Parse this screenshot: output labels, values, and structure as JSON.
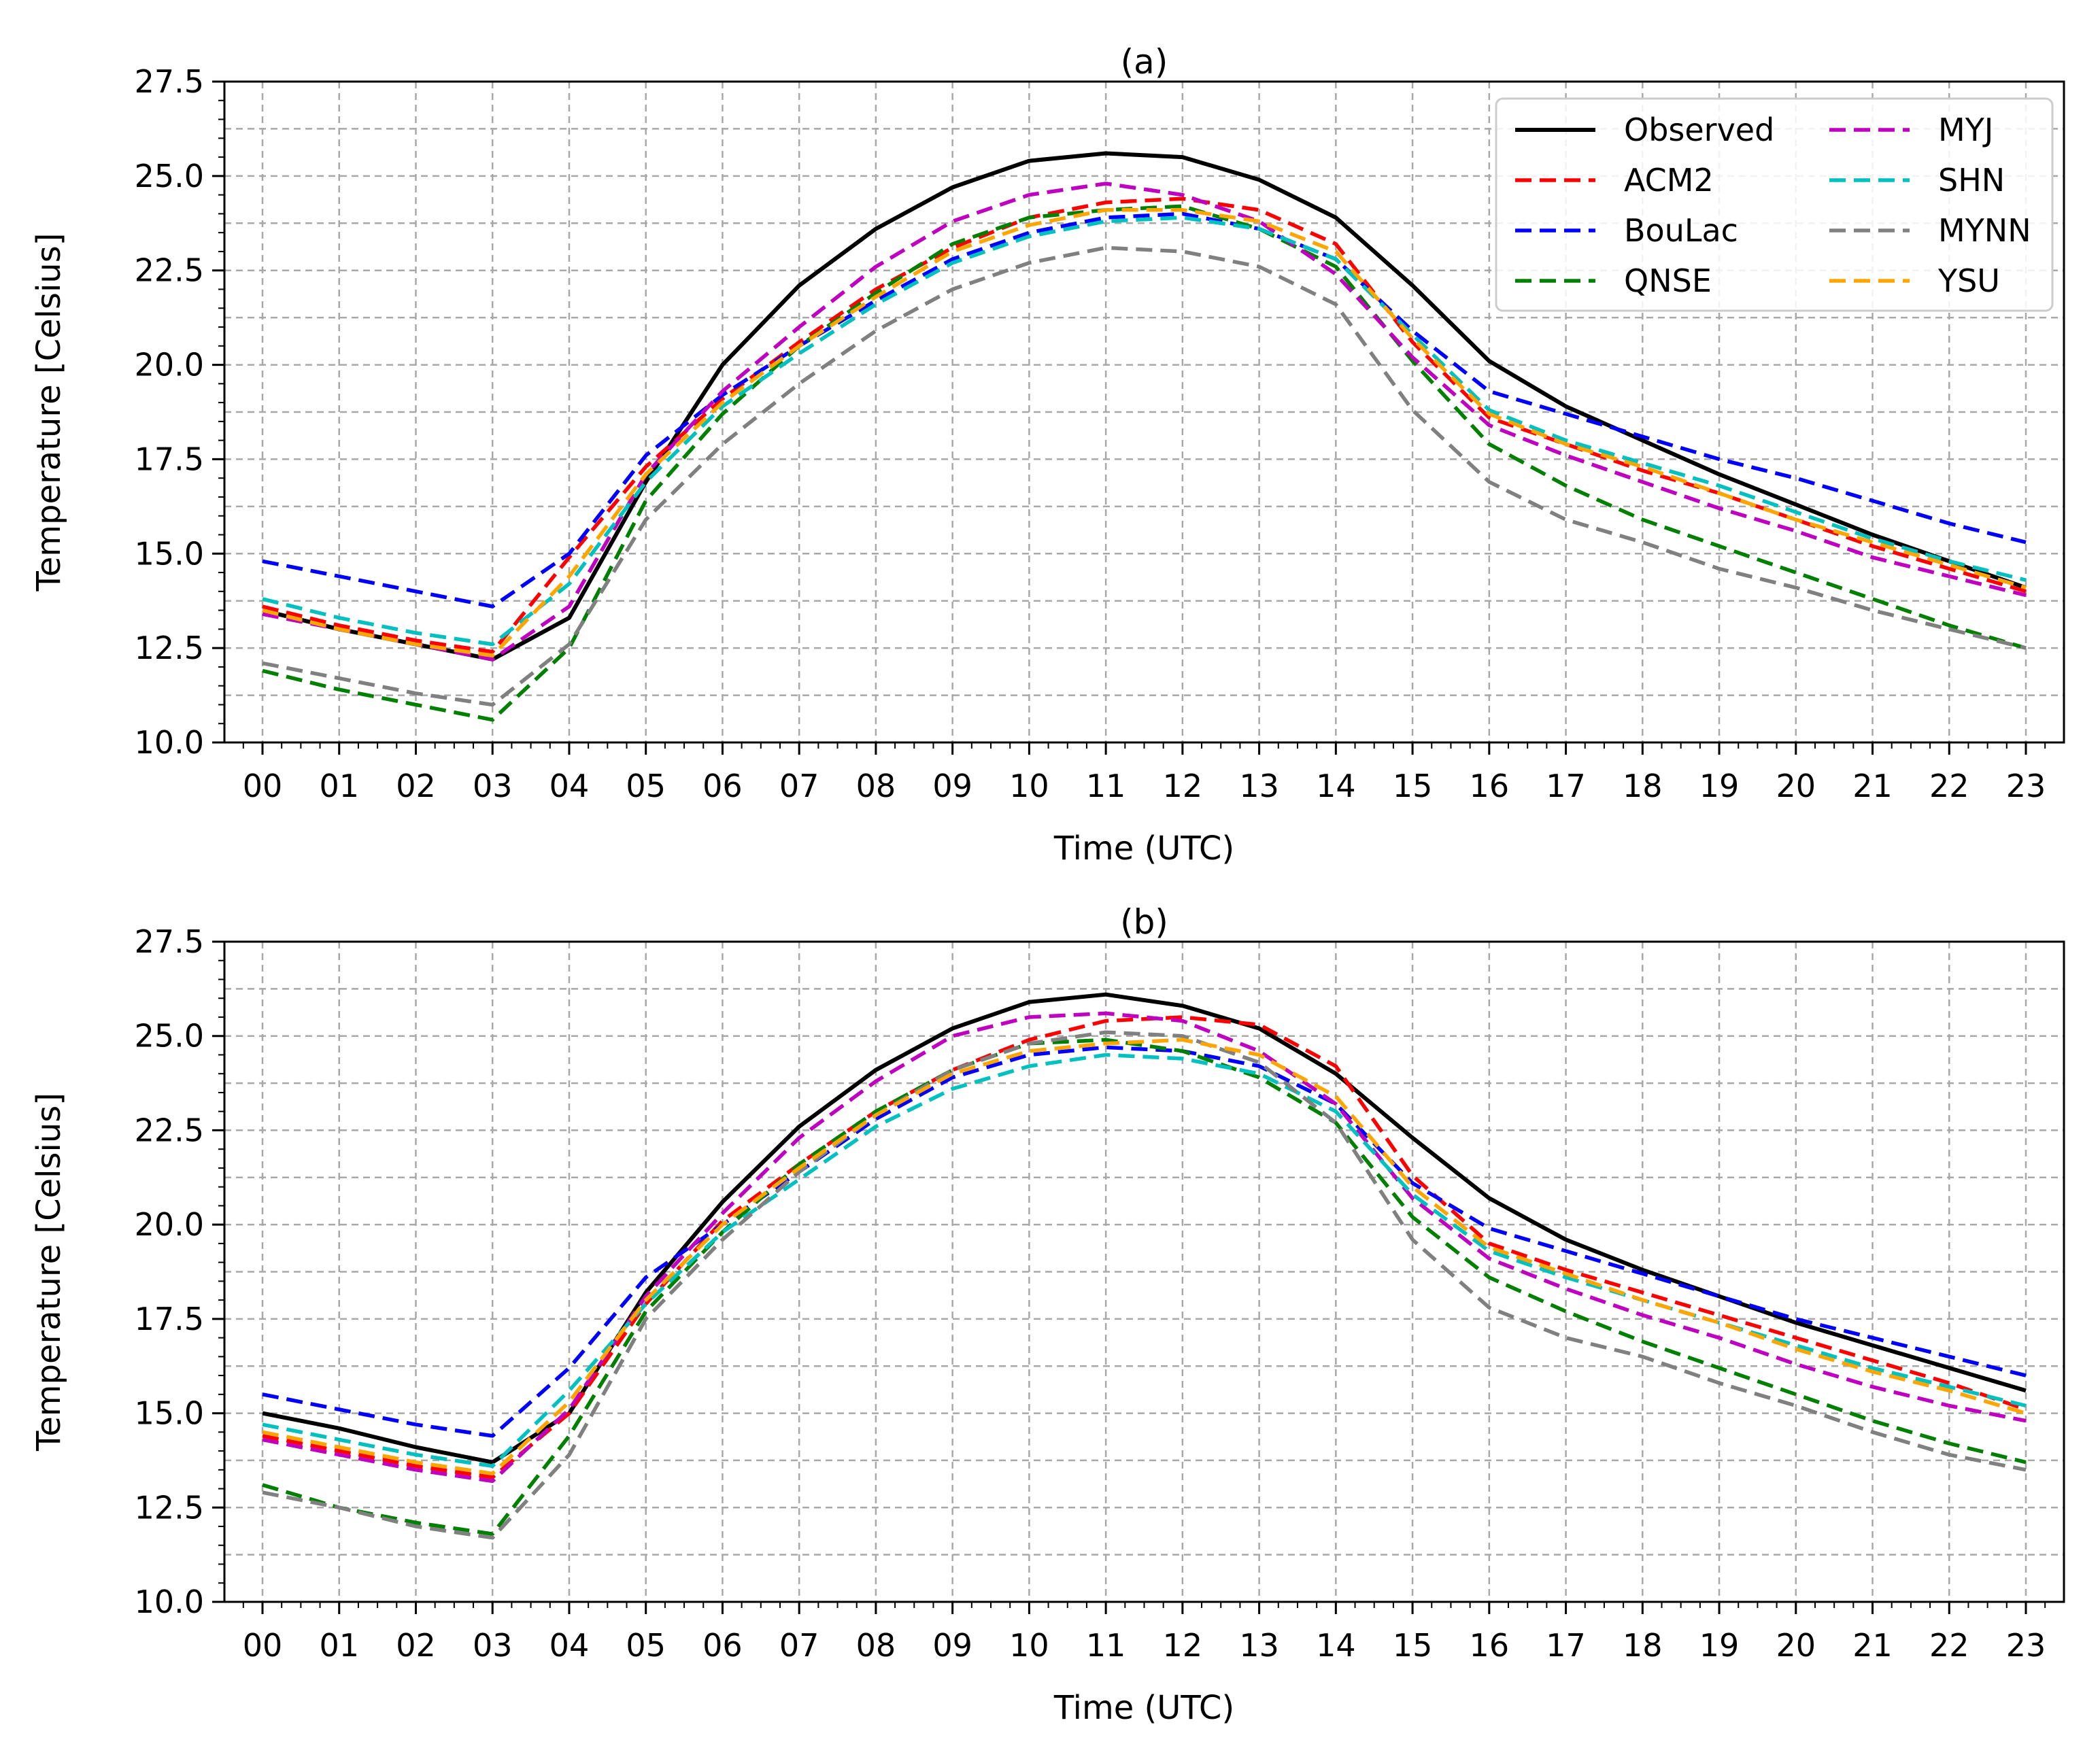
{
  "chart_data": [
    {
      "type": "line",
      "title": "(a)",
      "xlabel": "Time (UTC)",
      "ylabel": "Temperature [Celsius]",
      "ylim": [
        10.0,
        27.5
      ],
      "yticks": [
        "10.0",
        "12.5",
        "15.0",
        "17.5",
        "20.0",
        "22.5",
        "25.0",
        "27.5"
      ],
      "categories": [
        "00",
        "01",
        "02",
        "03",
        "04",
        "05",
        "06",
        "07",
        "08",
        "09",
        "10",
        "11",
        "12",
        "13",
        "14",
        "15",
        "16",
        "17",
        "18",
        "19",
        "20",
        "21",
        "22",
        "23"
      ],
      "grid": true,
      "legend_position": "top-right",
      "series": [
        {
          "name": "Observed",
          "color": "#000000",
          "style": "solid",
          "values": [
            13.5,
            13.0,
            12.6,
            12.2,
            13.3,
            16.9,
            20.0,
            22.1,
            23.6,
            24.7,
            25.4,
            25.6,
            25.5,
            24.9,
            23.9,
            22.1,
            20.1,
            18.9,
            18.0,
            17.1,
            16.3,
            15.5,
            14.8,
            14.1
          ]
        },
        {
          "name": "ACM2",
          "color": "#ff0000",
          "style": "dashed",
          "values": [
            13.6,
            13.1,
            12.7,
            12.4,
            14.9,
            17.3,
            19.1,
            20.6,
            22.0,
            23.1,
            23.9,
            24.3,
            24.4,
            24.1,
            23.2,
            20.6,
            18.6,
            17.9,
            17.2,
            16.6,
            15.9,
            15.2,
            14.6,
            14.0
          ]
        },
        {
          "name": "BouLac",
          "color": "#0000ff",
          "style": "dashed",
          "values": [
            14.8,
            14.4,
            14.0,
            13.6,
            15.0,
            17.6,
            19.2,
            20.5,
            21.7,
            22.8,
            23.5,
            23.9,
            24.0,
            23.6,
            22.8,
            20.9,
            19.3,
            18.7,
            18.1,
            17.5,
            17.0,
            16.4,
            15.8,
            15.3
          ]
        },
        {
          "name": "QNSE",
          "color": "#008000",
          "style": "dashed",
          "values": [
            11.9,
            11.4,
            11.0,
            10.6,
            12.5,
            16.4,
            18.7,
            20.5,
            21.9,
            23.2,
            23.9,
            24.1,
            24.2,
            23.6,
            22.6,
            20.1,
            17.9,
            16.8,
            15.9,
            15.2,
            14.5,
            13.8,
            13.1,
            12.5
          ]
        },
        {
          "name": "MYJ",
          "color": "#c000c0",
          "style": "dashed",
          "values": [
            13.4,
            13.0,
            12.6,
            12.2,
            13.6,
            17.1,
            19.3,
            21.0,
            22.6,
            23.8,
            24.5,
            24.8,
            24.5,
            23.8,
            22.4,
            20.2,
            18.4,
            17.6,
            16.9,
            16.2,
            15.6,
            14.9,
            14.4,
            13.9
          ]
        },
        {
          "name": "SHN",
          "color": "#00c0c0",
          "style": "dashed",
          "values": [
            13.8,
            13.3,
            12.9,
            12.6,
            14.2,
            16.9,
            18.9,
            20.3,
            21.6,
            22.7,
            23.4,
            23.8,
            23.9,
            23.6,
            22.8,
            20.8,
            18.8,
            18.0,
            17.4,
            16.8,
            16.1,
            15.4,
            14.8,
            14.3
          ]
        },
        {
          "name": "MYNN",
          "color": "#808080",
          "style": "dashed",
          "values": [
            12.1,
            11.7,
            11.3,
            11.0,
            12.6,
            15.9,
            17.9,
            19.5,
            20.9,
            22.0,
            22.7,
            23.1,
            23.0,
            22.6,
            21.6,
            18.8,
            16.9,
            15.9,
            15.3,
            14.6,
            14.1,
            13.5,
            13.0,
            12.5
          ]
        },
        {
          "name": "YSU",
          "color": "#ffa500",
          "style": "dashed",
          "values": [
            13.5,
            13.0,
            12.6,
            12.3,
            14.4,
            17.1,
            19.0,
            20.5,
            21.8,
            23.0,
            23.7,
            24.1,
            24.1,
            23.8,
            23.0,
            20.7,
            18.7,
            17.9,
            17.3,
            16.6,
            15.9,
            15.3,
            14.7,
            14.1
          ]
        }
      ]
    },
    {
      "type": "line",
      "title": "(b)",
      "xlabel": "Time (UTC)",
      "ylabel": "Temperature [Celsius]",
      "ylim": [
        10.0,
        27.5
      ],
      "yticks": [
        "10.0",
        "12.5",
        "15.0",
        "17.5",
        "20.0",
        "22.5",
        "25.0",
        "27.5"
      ],
      "categories": [
        "00",
        "01",
        "02",
        "03",
        "04",
        "05",
        "06",
        "07",
        "08",
        "09",
        "10",
        "11",
        "12",
        "13",
        "14",
        "15",
        "16",
        "17",
        "18",
        "19",
        "20",
        "21",
        "22",
        "23"
      ],
      "grid": true,
      "series": [
        {
          "name": "Observed",
          "color": "#000000",
          "style": "solid",
          "values": [
            15.0,
            14.6,
            14.1,
            13.7,
            15.0,
            18.2,
            20.6,
            22.6,
            24.1,
            25.2,
            25.9,
            26.1,
            25.8,
            25.2,
            24.0,
            22.3,
            20.7,
            19.6,
            18.8,
            18.1,
            17.4,
            16.8,
            16.2,
            15.6
          ]
        },
        {
          "name": "ACM2",
          "color": "#ff0000",
          "style": "dashed",
          "values": [
            14.4,
            14.0,
            13.6,
            13.3,
            15.0,
            17.9,
            20.1,
            21.6,
            23.0,
            24.1,
            24.9,
            25.4,
            25.5,
            25.3,
            24.2,
            21.3,
            19.5,
            18.8,
            18.2,
            17.6,
            17.0,
            16.4,
            15.8,
            15.1
          ]
        },
        {
          "name": "BouLac",
          "color": "#0000ff",
          "style": "dashed",
          "values": [
            15.5,
            15.1,
            14.7,
            14.4,
            16.2,
            18.6,
            20.0,
            21.4,
            22.8,
            23.9,
            24.5,
            24.7,
            24.6,
            24.2,
            23.2,
            21.1,
            19.9,
            19.3,
            18.7,
            18.1,
            17.5,
            17.0,
            16.5,
            16.0
          ]
        },
        {
          "name": "QNSE",
          "color": "#008000",
          "style": "dashed",
          "values": [
            13.1,
            12.5,
            12.1,
            11.8,
            14.4,
            17.7,
            19.8,
            21.6,
            23.0,
            24.1,
            24.8,
            24.9,
            24.6,
            23.9,
            22.7,
            20.2,
            18.6,
            17.7,
            16.9,
            16.2,
            15.5,
            14.8,
            14.2,
            13.7
          ]
        },
        {
          "name": "MYJ",
          "color": "#c000c0",
          "style": "dashed",
          "values": [
            14.3,
            13.9,
            13.5,
            13.2,
            15.1,
            18.1,
            20.3,
            22.3,
            23.8,
            25.0,
            25.5,
            25.6,
            25.4,
            24.6,
            23.2,
            20.7,
            19.1,
            18.3,
            17.6,
            17.0,
            16.3,
            15.7,
            15.2,
            14.8
          ]
        },
        {
          "name": "SHN",
          "color": "#00c0c0",
          "style": "dashed",
          "values": [
            14.7,
            14.3,
            13.9,
            13.6,
            15.6,
            17.9,
            19.8,
            21.2,
            22.6,
            23.6,
            24.2,
            24.5,
            24.4,
            24.0,
            23.0,
            20.8,
            19.3,
            18.6,
            18.0,
            17.4,
            16.8,
            16.2,
            15.7,
            15.2
          ]
        },
        {
          "name": "MYNN",
          "color": "#808080",
          "style": "dashed",
          "values": [
            12.9,
            12.5,
            12.0,
            11.7,
            13.9,
            17.5,
            19.6,
            21.4,
            22.9,
            24.1,
            24.8,
            25.1,
            25.0,
            24.3,
            22.7,
            19.6,
            17.8,
            17.0,
            16.5,
            15.8,
            15.2,
            14.5,
            13.9,
            13.5
          ]
        },
        {
          "name": "YSU",
          "color": "#ffa500",
          "style": "dashed",
          "values": [
            14.5,
            14.1,
            13.7,
            13.4,
            15.3,
            18.0,
            20.0,
            21.5,
            22.9,
            24.0,
            24.6,
            24.8,
            24.9,
            24.5,
            23.4,
            21.0,
            19.4,
            18.7,
            18.0,
            17.4,
            16.7,
            16.1,
            15.6,
            15.0
          ]
        }
      ]
    }
  ]
}
